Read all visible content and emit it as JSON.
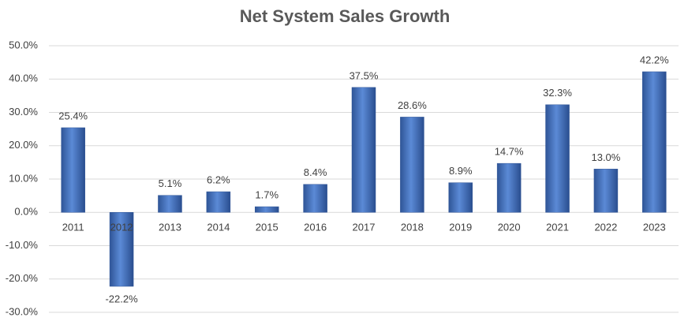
{
  "chart_data": {
    "type": "bar",
    "title": "Net System Sales Growth",
    "categories": [
      "2011",
      "2012",
      "2013",
      "2014",
      "2015",
      "2016",
      "2017",
      "2018",
      "2019",
      "2020",
      "2021",
      "2022",
      "2023"
    ],
    "values": [
      25.4,
      -22.2,
      5.1,
      6.2,
      1.7,
      8.4,
      37.5,
      28.6,
      8.9,
      14.7,
      32.3,
      13.0,
      42.2
    ],
    "value_labels": [
      "25.4%",
      "-22.2%",
      "5.1%",
      "6.2%",
      "1.7%",
      "8.4%",
      "37.5%",
      "28.6%",
      "8.9%",
      "14.7%",
      "32.3%",
      "13.0%",
      "42.2%"
    ],
    "color": "#4472c4",
    "ylim": [
      -30,
      50
    ],
    "yticks": [
      {
        "value": -30,
        "label": "-30.0%"
      },
      {
        "value": -20,
        "label": "-20.0%"
      },
      {
        "value": -10,
        "label": "-10.0%"
      },
      {
        "value": 0,
        "label": "0.0%"
      },
      {
        "value": 10,
        "label": "10.0%"
      },
      {
        "value": 20,
        "label": "20.0%"
      },
      {
        "value": 30,
        "label": "30.0%"
      },
      {
        "value": 40,
        "label": "40.0%"
      },
      {
        "value": 50,
        "label": "50.0%"
      }
    ],
    "grid": true
  }
}
